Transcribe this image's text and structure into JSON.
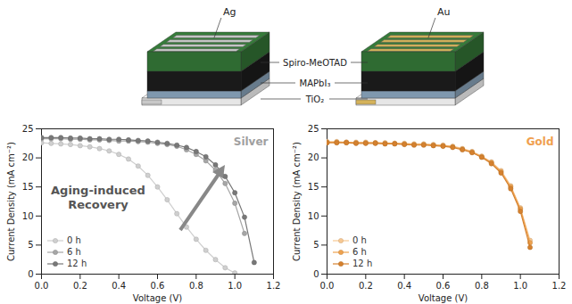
{
  "diagram": {
    "electrodes": [
      "Ag",
      "Au"
    ],
    "layers": [
      "Spiro-MeOTAD",
      "MAPbI₃",
      "TiO₂"
    ]
  },
  "chart_data": [
    {
      "type": "line",
      "title": "Silver",
      "color": "#a0a0a0",
      "xlabel": "Voltage (V)",
      "ylabel": "Current Density (mA cm⁻²)",
      "xlim": [
        0,
        1.2
      ],
      "ylim": [
        0,
        25
      ],
      "xticks": [
        {
          "value": 0,
          "label": "0.0"
        },
        0.2,
        0.4,
        0.6,
        0.8,
        {
          "value": 1,
          "label": "1.0"
        },
        1.2
      ],
      "yticks": [
        0,
        5,
        10,
        15,
        20,
        25
      ],
      "legend": "lower left",
      "marker": "circle",
      "line_style": "solid",
      "annotations": [
        "Aging-induced Recovery"
      ],
      "x": [
        0,
        0.05,
        0.1,
        0.15,
        0.2,
        0.25,
        0.3,
        0.35,
        0.4,
        0.45,
        0.5,
        0.55,
        0.6,
        0.65,
        0.7,
        0.75,
        0.8,
        0.85,
        0.9,
        0.95,
        1.0,
        1.05,
        1.1
      ],
      "series": [
        {
          "name": "0 h",
          "color": "#cfcfcf",
          "values": [
            22.6,
            22.5,
            22.4,
            22.3,
            22.1,
            21.9,
            21.6,
            21.2,
            20.6,
            19.8,
            18.6,
            17.0,
            15.0,
            12.8,
            10.4,
            8.1,
            6.0,
            4.1,
            2.5,
            1.1,
            0.2,
            null,
            null
          ]
        },
        {
          "name": "6 h",
          "color": "#a6a6a6",
          "values": [
            23.3,
            23.3,
            23.3,
            23.2,
            23.2,
            23.1,
            23.1,
            23.0,
            22.9,
            22.9,
            22.8,
            22.7,
            22.5,
            22.3,
            22.0,
            21.4,
            20.6,
            19.5,
            17.9,
            15.6,
            12.2,
            7.0,
            null
          ]
        },
        {
          "name": "12 h",
          "color": "#787878",
          "values": [
            23.5,
            23.5,
            23.5,
            23.4,
            23.4,
            23.3,
            23.3,
            23.2,
            23.2,
            23.1,
            23.0,
            22.9,
            22.7,
            22.5,
            22.2,
            21.8,
            21.1,
            20.2,
            18.8,
            16.8,
            14.0,
            9.8,
            2.0
          ]
        }
      ]
    },
    {
      "type": "line",
      "title": "Gold",
      "color": "#f0a050",
      "xlabel": "Voltage (V)",
      "ylabel": "Current Density (mA cm⁻²)",
      "xlim": [
        0,
        1.2
      ],
      "ylim": [
        0,
        25
      ],
      "xticks": [
        {
          "value": 0,
          "label": "0.0"
        },
        0.2,
        0.4,
        0.6,
        0.8,
        {
          "value": 1,
          "label": "1.0"
        },
        1.2
      ],
      "yticks": [
        0,
        5,
        10,
        15,
        20,
        25
      ],
      "legend": "lower left",
      "marker": "circle",
      "line_style": "solid",
      "x": [
        0,
        0.05,
        0.1,
        0.15,
        0.2,
        0.25,
        0.3,
        0.35,
        0.4,
        0.45,
        0.5,
        0.55,
        0.6,
        0.65,
        0.7,
        0.75,
        0.8,
        0.85,
        0.9,
        0.95,
        1.0,
        1.05,
        1.1
      ],
      "series": [
        {
          "name": "0 h",
          "color": "#f7c892",
          "values": [
            22.8,
            22.8,
            22.7,
            22.7,
            22.7,
            22.6,
            22.6,
            22.5,
            22.5,
            22.4,
            22.4,
            22.3,
            22.2,
            22.0,
            21.6,
            21.1,
            20.3,
            19.3,
            17.8,
            15.2,
            11.4,
            5.8,
            null
          ]
        },
        {
          "name": "6 h",
          "color": "#eea24f",
          "values": [
            22.7,
            22.7,
            22.7,
            22.6,
            22.6,
            22.6,
            22.5,
            22.5,
            22.4,
            22.3,
            22.3,
            22.2,
            22.1,
            21.9,
            21.5,
            21.0,
            20.2,
            19.2,
            17.6,
            15.0,
            11.2,
            5.4,
            null
          ]
        },
        {
          "name": "12 h",
          "color": "#d5812e",
          "values": [
            22.6,
            22.6,
            22.6,
            22.5,
            22.5,
            22.5,
            22.4,
            22.4,
            22.3,
            22.2,
            22.2,
            22.1,
            22.0,
            21.8,
            21.4,
            20.9,
            20.1,
            19.0,
            17.4,
            14.7,
            10.8,
            4.6,
            null
          ]
        }
      ]
    }
  ]
}
